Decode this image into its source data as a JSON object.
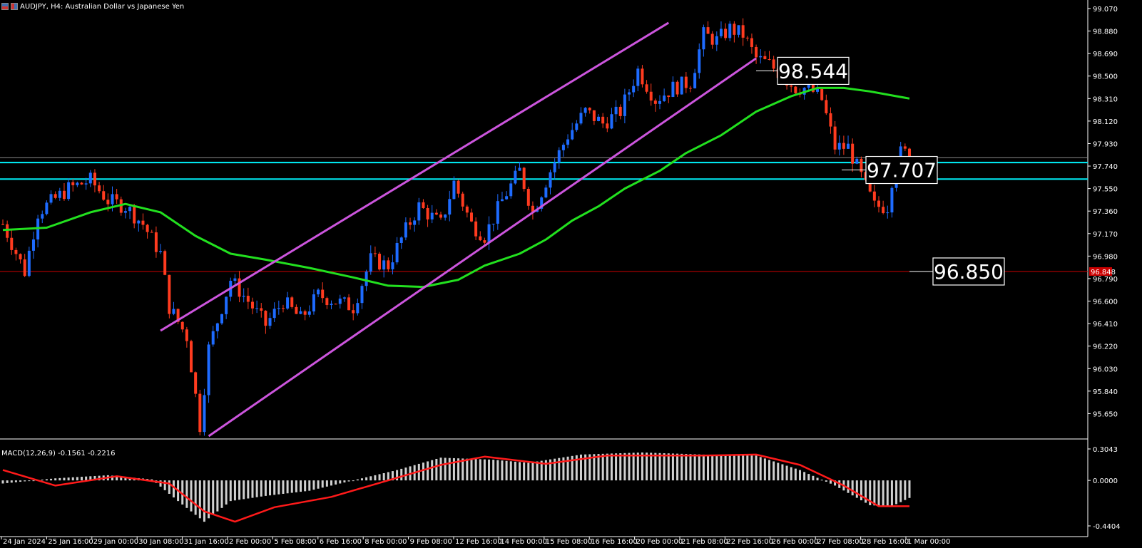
{
  "header": {
    "symbol_text": "AUDJPY, H4:  Australian Dollar vs Japanese Yen"
  },
  "macd": {
    "label": "MACD(12,26,9) -0.1561 -0.2216",
    "y_ticks": [
      "0.3043",
      "0.0000",
      "-0.4404"
    ],
    "ylim": [
      -0.4404,
      0.3043
    ]
  },
  "colors": {
    "bull": "#1e6bff",
    "bear": "#ff3b1f",
    "ma": "#22e01f",
    "channel": "#cc55dd",
    "support": "#00e5ee",
    "red_level": "#cc0000",
    "signal": "#ff1a1a",
    "hist": "#d0d0d0"
  },
  "chart_data": {
    "type": "candlestick",
    "symbol": "AUDJPY",
    "timeframe": "H4",
    "ylim": [
      95.46,
      99.07
    ],
    "y_ticks": [
      "99.070",
      "98.880",
      "98.690",
      "98.500",
      "98.310",
      "98.120",
      "97.930",
      "97.740",
      "97.550",
      "97.360",
      "97.170",
      "96.980",
      "96.790",
      "96.600",
      "96.410",
      "96.220",
      "96.030",
      "95.840",
      "95.650"
    ],
    "x_ticks": [
      "24 Jan 2024",
      "25 Jan 16:00",
      "29 Jan 00:00",
      "30 Jan 08:00",
      "31 Jan 16:00",
      "2 Feb 00:00",
      "5 Feb 08:00",
      "6 Feb 16:00",
      "8 Feb 00:00",
      "9 Feb 08:00",
      "12 Feb 16:00",
      "14 Feb 00:00",
      "15 Feb 08:00",
      "16 Feb 16:00",
      "20 Feb 00:00",
      "21 Feb 08:00",
      "22 Feb 16:00",
      "26 Feb 00:00",
      "27 Feb 08:00",
      "28 Feb 16:00",
      "1 Mar 00:00"
    ],
    "price_tag": "96.848",
    "levels": [
      {
        "label": "98.544",
        "value": 98.544
      },
      {
        "label": "97.707",
        "value": 97.707
      },
      {
        "label": "96.850",
        "value": 96.85
      }
    ],
    "support_zone": [
      97.63,
      97.77
    ],
    "current_price": 97.81,
    "close_path": [
      {
        "i": 0,
        "p": 97.25
      },
      {
        "i": 5,
        "p": 96.85
      },
      {
        "i": 8,
        "p": 97.35
      },
      {
        "i": 15,
        "p": 97.55
      },
      {
        "i": 20,
        "p": 97.62
      },
      {
        "i": 24,
        "p": 97.45
      },
      {
        "i": 28,
        "p": 97.4
      },
      {
        "i": 32,
        "p": 97.25
      },
      {
        "i": 36,
        "p": 97.0
      },
      {
        "i": 38,
        "p": 96.55
      },
      {
        "i": 42,
        "p": 96.3
      },
      {
        "i": 45,
        "p": 95.55
      },
      {
        "i": 47,
        "p": 96.2
      },
      {
        "i": 52,
        "p": 96.78
      },
      {
        "i": 56,
        "p": 96.6
      },
      {
        "i": 60,
        "p": 96.4
      },
      {
        "i": 64,
        "p": 96.6
      },
      {
        "i": 68,
        "p": 96.45
      },
      {
        "i": 72,
        "p": 96.65
      },
      {
        "i": 76,
        "p": 96.6
      },
      {
        "i": 80,
        "p": 96.55
      },
      {
        "i": 84,
        "p": 96.95
      },
      {
        "i": 88,
        "p": 96.9
      },
      {
        "i": 92,
        "p": 97.2
      },
      {
        "i": 95,
        "p": 97.4
      },
      {
        "i": 100,
        "p": 97.25
      },
      {
        "i": 103,
        "p": 97.6
      },
      {
        "i": 107,
        "p": 97.25
      },
      {
        "i": 110,
        "p": 97.15
      },
      {
        "i": 114,
        "p": 97.45
      },
      {
        "i": 118,
        "p": 97.7
      },
      {
        "i": 121,
        "p": 97.35
      },
      {
        "i": 125,
        "p": 97.7
      },
      {
        "i": 129,
        "p": 98.0
      },
      {
        "i": 133,
        "p": 98.2
      },
      {
        "i": 137,
        "p": 98.1
      },
      {
        "i": 141,
        "p": 98.2
      },
      {
        "i": 145,
        "p": 98.55
      },
      {
        "i": 149,
        "p": 98.3
      },
      {
        "i": 153,
        "p": 98.4
      },
      {
        "i": 157,
        "p": 98.45
      },
      {
        "i": 160,
        "p": 98.85
      },
      {
        "i": 163,
        "p": 98.8
      },
      {
        "i": 166,
        "p": 98.9
      },
      {
        "i": 169,
        "p": 98.85
      },
      {
        "i": 172,
        "p": 98.65
      },
      {
        "i": 175,
        "p": 98.6
      },
      {
        "i": 178,
        "p": 98.5
      },
      {
        "i": 181,
        "p": 98.4
      },
      {
        "i": 184,
        "p": 98.4
      },
      {
        "i": 187,
        "p": 98.3
      },
      {
        "i": 190,
        "p": 97.9
      },
      {
        "i": 193,
        "p": 97.9
      },
      {
        "i": 196,
        "p": 97.65
      },
      {
        "i": 199,
        "p": 97.4
      },
      {
        "i": 202,
        "p": 97.4
      },
      {
        "i": 204,
        "p": 97.85
      },
      {
        "i": 207,
        "p": 97.85
      }
    ],
    "ma_path": [
      {
        "i": 0,
        "p": 97.2
      },
      {
        "i": 10,
        "p": 97.22
      },
      {
        "i": 20,
        "p": 97.35
      },
      {
        "i": 28,
        "p": 97.42
      },
      {
        "i": 36,
        "p": 97.35
      },
      {
        "i": 44,
        "p": 97.15
      },
      {
        "i": 52,
        "p": 97.0
      },
      {
        "i": 60,
        "p": 96.95
      },
      {
        "i": 70,
        "p": 96.88
      },
      {
        "i": 80,
        "p": 96.8
      },
      {
        "i": 88,
        "p": 96.73
      },
      {
        "i": 96,
        "p": 96.72
      },
      {
        "i": 104,
        "p": 96.78
      },
      {
        "i": 110,
        "p": 96.9
      },
      {
        "i": 118,
        "p": 97.0
      },
      {
        "i": 124,
        "p": 97.12
      },
      {
        "i": 130,
        "p": 97.28
      },
      {
        "i": 136,
        "p": 97.4
      },
      {
        "i": 142,
        "p": 97.55
      },
      {
        "i": 150,
        "p": 97.7
      },
      {
        "i": 156,
        "p": 97.85
      },
      {
        "i": 164,
        "p": 98.0
      },
      {
        "i": 172,
        "p": 98.2
      },
      {
        "i": 180,
        "p": 98.33
      },
      {
        "i": 186,
        "p": 98.4
      },
      {
        "i": 192,
        "p": 98.4
      },
      {
        "i": 198,
        "p": 98.37
      },
      {
        "i": 204,
        "p": 98.33
      },
      {
        "i": 207,
        "p": 98.31
      }
    ],
    "channel_lines": [
      {
        "from": {
          "i": 36,
          "p": 96.35
        },
        "to": {
          "i": 152,
          "p": 98.95
        }
      },
      {
        "from": {
          "i": 47,
          "p": 95.46
        },
        "to": {
          "i": 172,
          "p": 98.65
        }
      }
    ],
    "macd_hist_path": [
      {
        "i": 0,
        "v": -0.03
      },
      {
        "i": 12,
        "v": 0.02
      },
      {
        "i": 24,
        "v": 0.05
      },
      {
        "i": 34,
        "v": 0.01
      },
      {
        "i": 40,
        "v": -0.2
      },
      {
        "i": 46,
        "v": -0.4
      },
      {
        "i": 52,
        "v": -0.2
      },
      {
        "i": 60,
        "v": -0.15
      },
      {
        "i": 70,
        "v": -0.1
      },
      {
        "i": 80,
        "v": 0.0
      },
      {
        "i": 90,
        "v": 0.1
      },
      {
        "i": 100,
        "v": 0.22
      },
      {
        "i": 112,
        "v": 0.2
      },
      {
        "i": 120,
        "v": 0.17
      },
      {
        "i": 132,
        "v": 0.25
      },
      {
        "i": 146,
        "v": 0.27
      },
      {
        "i": 160,
        "v": 0.25
      },
      {
        "i": 172,
        "v": 0.24
      },
      {
        "i": 182,
        "v": 0.1
      },
      {
        "i": 190,
        "v": -0.05
      },
      {
        "i": 198,
        "v": -0.24
      },
      {
        "i": 203,
        "v": -0.25
      },
      {
        "i": 207,
        "v": -0.17
      }
    ],
    "macd_signal_path": [
      {
        "i": 0,
        "v": 0.1
      },
      {
        "i": 12,
        "v": -0.05
      },
      {
        "i": 26,
        "v": 0.04
      },
      {
        "i": 38,
        "v": -0.03
      },
      {
        "i": 46,
        "v": -0.3
      },
      {
        "i": 53,
        "v": -0.4
      },
      {
        "i": 62,
        "v": -0.26
      },
      {
        "i": 75,
        "v": -0.16
      },
      {
        "i": 88,
        "v": 0.0
      },
      {
        "i": 100,
        "v": 0.15
      },
      {
        "i": 110,
        "v": 0.23
      },
      {
        "i": 124,
        "v": 0.16
      },
      {
        "i": 138,
        "v": 0.24
      },
      {
        "i": 160,
        "v": 0.24
      },
      {
        "i": 172,
        "v": 0.25
      },
      {
        "i": 182,
        "v": 0.15
      },
      {
        "i": 192,
        "v": -0.05
      },
      {
        "i": 200,
        "v": -0.25
      },
      {
        "i": 207,
        "v": -0.25
      }
    ]
  }
}
